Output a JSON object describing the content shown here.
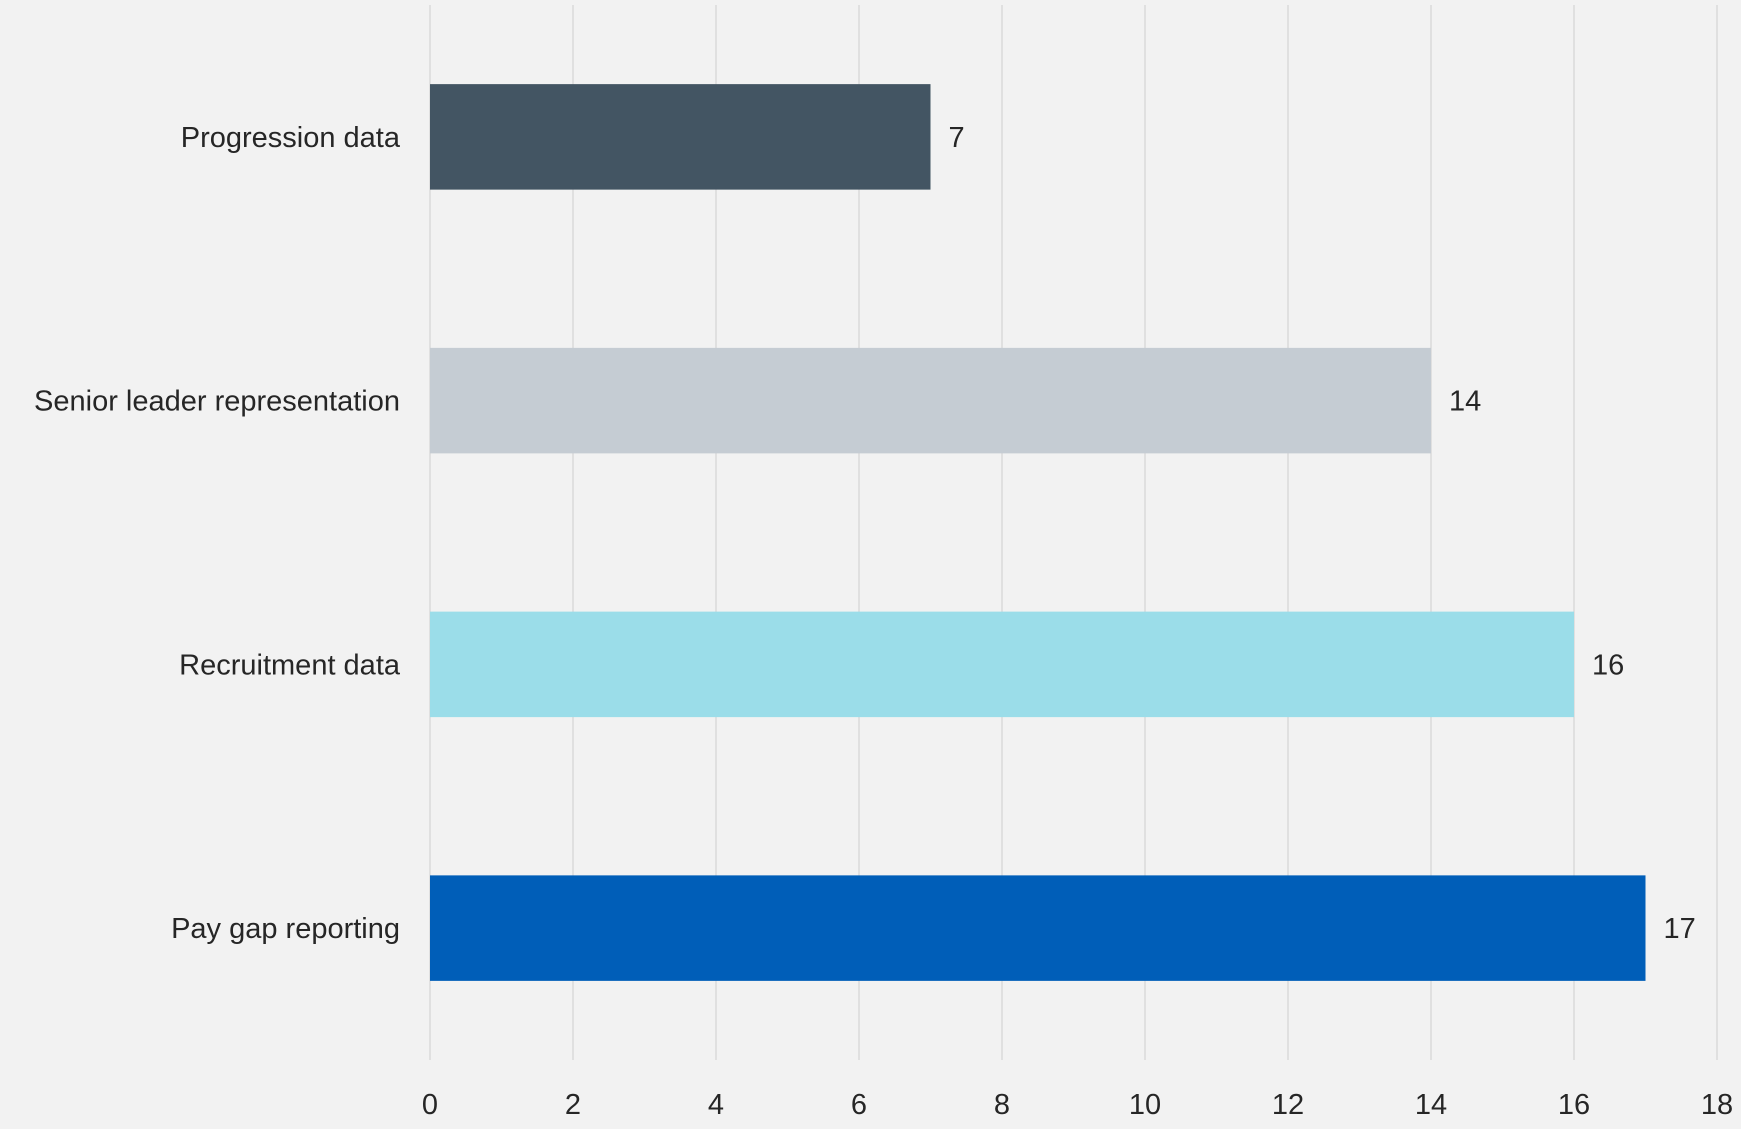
{
  "chart_data": {
    "type": "bar",
    "orientation": "horizontal",
    "title": "",
    "xlabel": "",
    "ylabel": "",
    "categories": [
      "Progression data",
      "Senior leader representation",
      "Recruitment data",
      "Pay gap reporting"
    ],
    "values": [
      7,
      14,
      16,
      17
    ],
    "value_labels": [
      "7",
      "14",
      "16",
      "17"
    ],
    "bar_colors": [
      "#435563",
      "#c5ccd3",
      "#9bdde9",
      "#005eb8"
    ],
    "xlim": [
      0,
      18
    ],
    "x_ticks": [
      0,
      2,
      4,
      6,
      8,
      10,
      12,
      14,
      16,
      18
    ],
    "x_tick_labels": [
      "0",
      "2",
      "4",
      "6",
      "8",
      "10",
      "12",
      "14",
      "16",
      "18"
    ],
    "grid": "vertical",
    "gridline_color": "#d9d9d9",
    "background": "#f2f2f2",
    "legend": "none"
  }
}
